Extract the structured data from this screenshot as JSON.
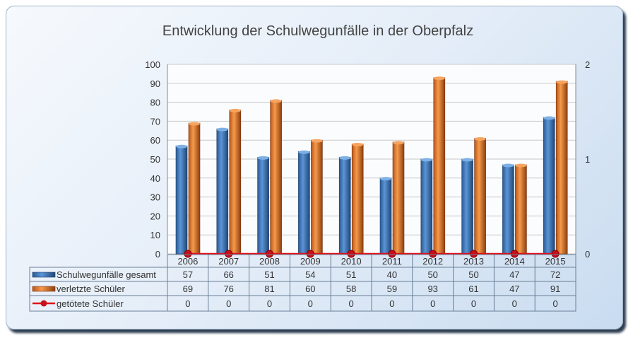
{
  "chart_data": {
    "type": "bar",
    "title": "Entwicklung der Schulwegunfälle in der Oberpfalz",
    "categories": [
      "2006",
      "2007",
      "2008",
      "2009",
      "2010",
      "2011",
      "2012",
      "2013",
      "2014",
      "2015"
    ],
    "series": [
      {
        "name": "Schulwegunfälle gesamt",
        "type": "bar",
        "axis": "left",
        "color": "#3f78b8",
        "values": [
          57,
          66,
          51,
          54,
          51,
          40,
          50,
          50,
          47,
          72
        ]
      },
      {
        "name": "verletzte Schüler",
        "type": "bar",
        "axis": "left",
        "color": "#e8772a",
        "values": [
          69,
          76,
          81,
          60,
          58,
          59,
          93,
          61,
          47,
          91
        ]
      },
      {
        "name": "getötete Schüler",
        "type": "line",
        "axis": "right",
        "color": "#e0101a",
        "values": [
          0,
          0,
          0,
          0,
          0,
          0,
          0,
          0,
          0,
          0
        ]
      }
    ],
    "ylim": [
      0,
      100
    ],
    "yticks": [
      "0",
      "10",
      "20",
      "30",
      "40",
      "50",
      "60",
      "70",
      "80",
      "90",
      "100"
    ],
    "y2lim": [
      0,
      2
    ],
    "y2ticks": [
      "0",
      "1",
      "2"
    ],
    "grid": true,
    "legend": "data-table-below"
  }
}
